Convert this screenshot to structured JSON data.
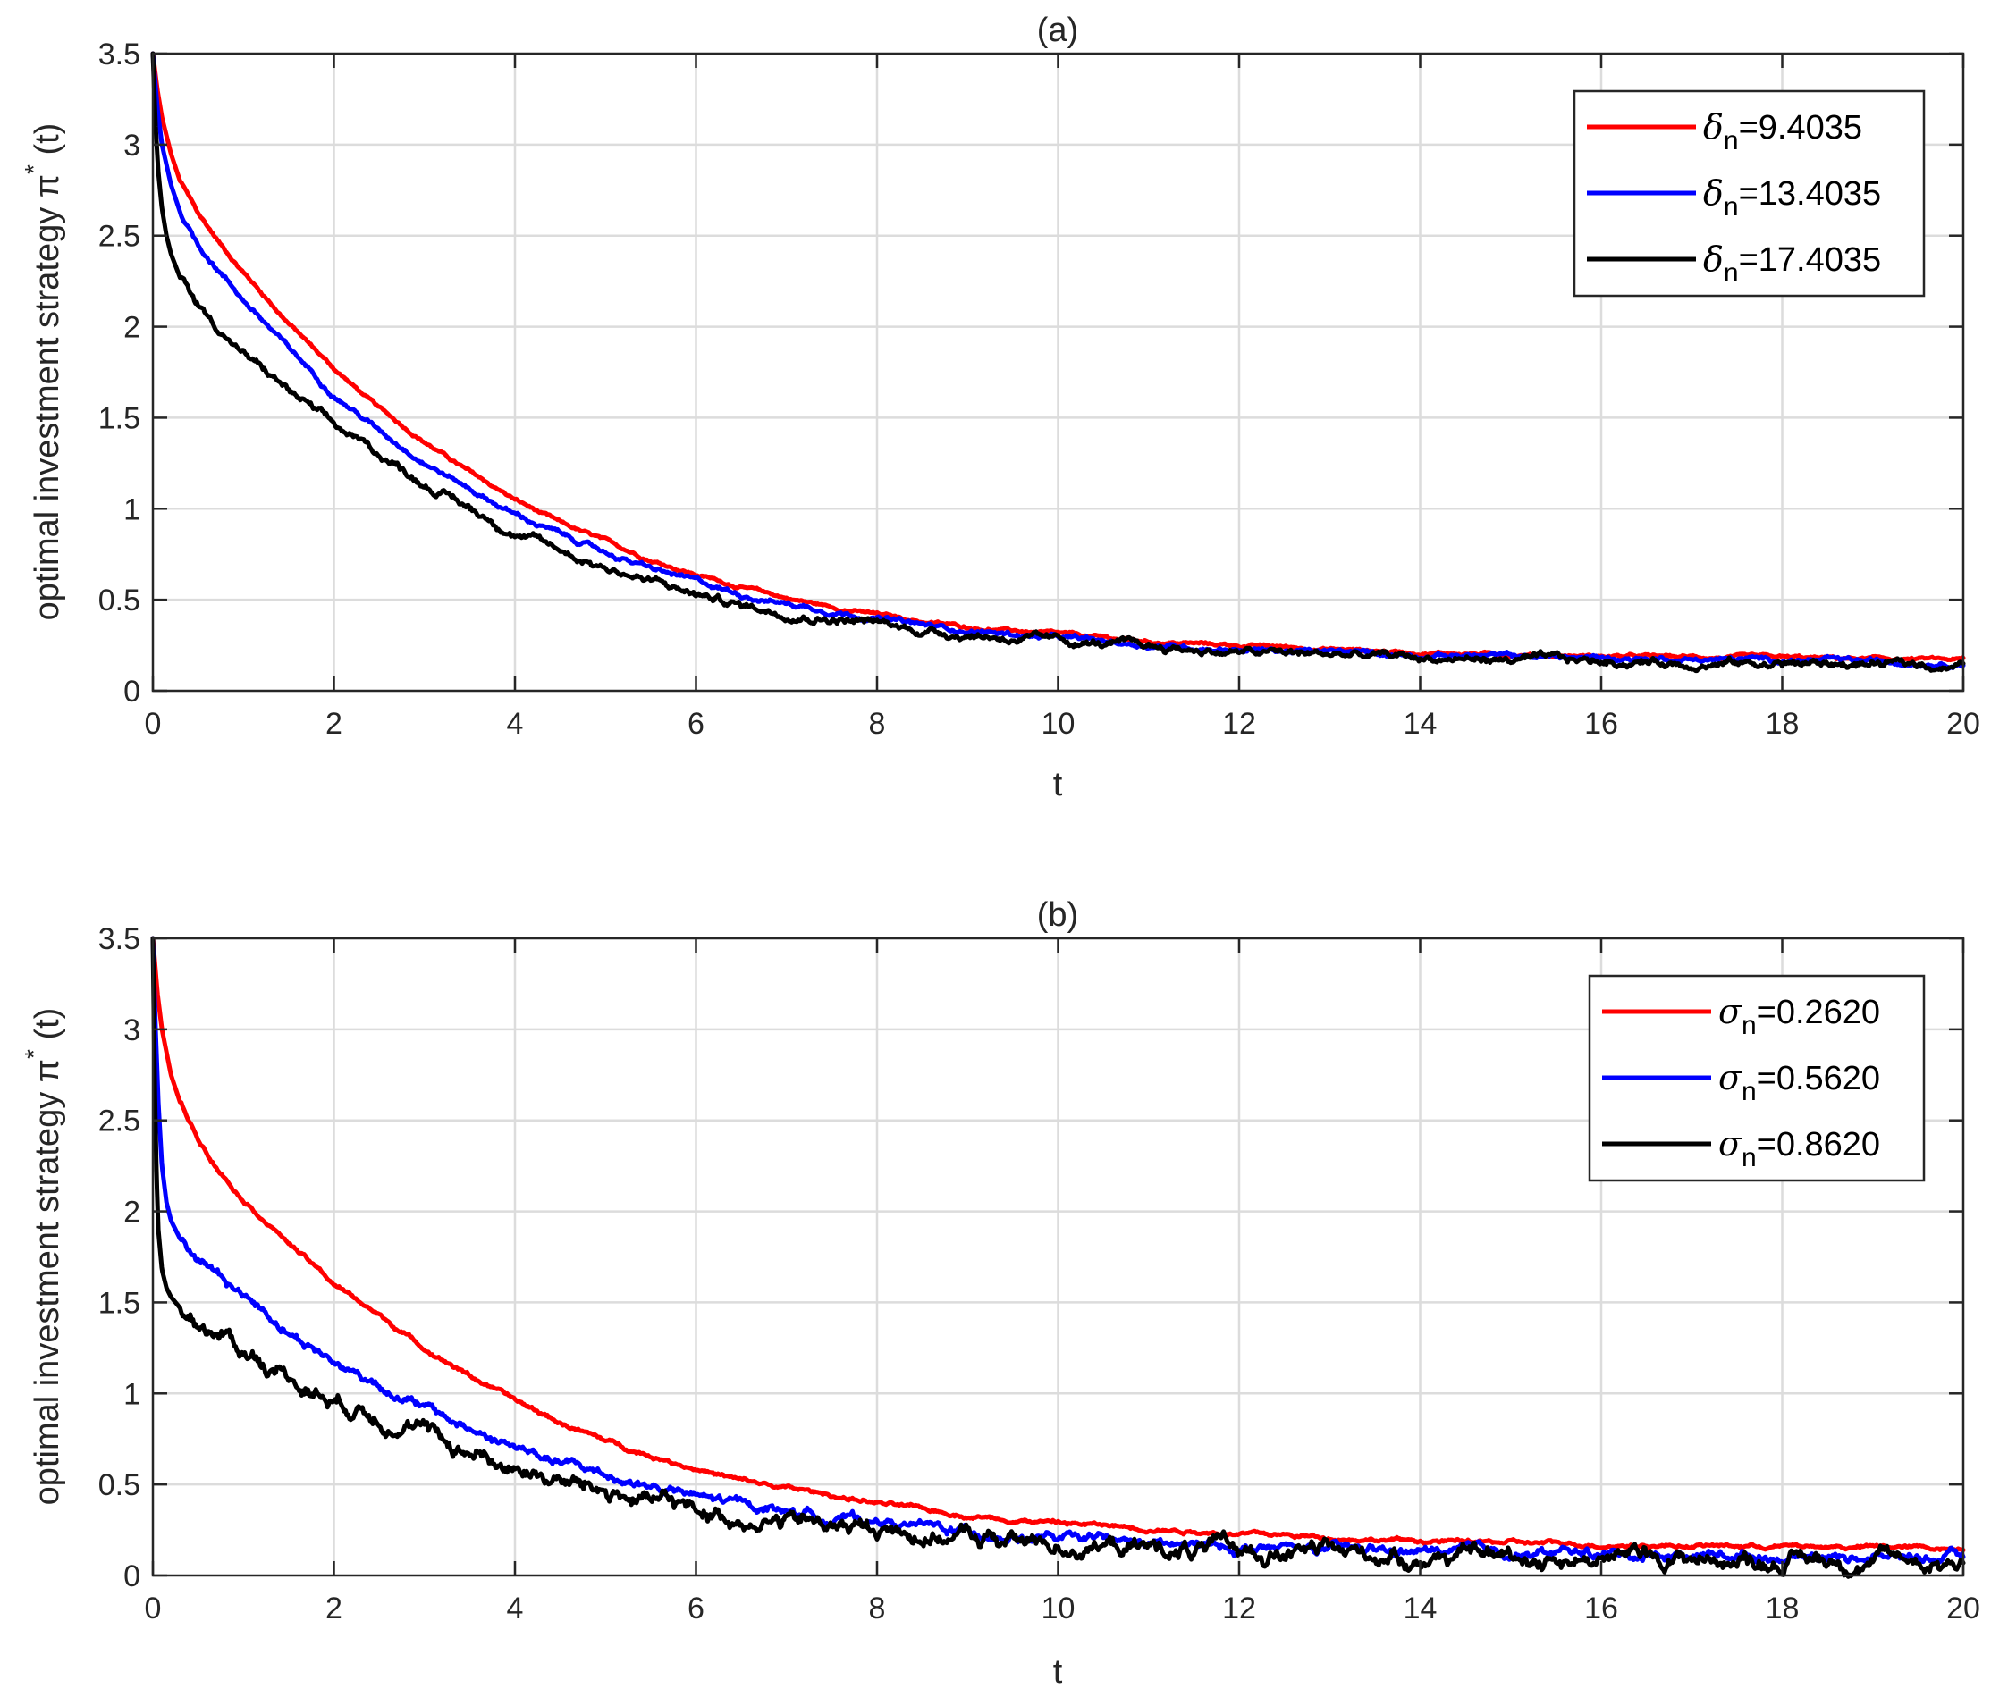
{
  "chart_data": [
    {
      "type": "line",
      "title": "(a)",
      "xlabel": "t",
      "ylabel": "optimal investment strategy π",
      "ylabel_superscript": "*",
      "ylabel_suffix": " (t)",
      "xlim": [
        0,
        20
      ],
      "ylim": [
        0,
        3.5
      ],
      "xticks": [
        "0",
        "2",
        "4",
        "6",
        "8",
        "10",
        "12",
        "14",
        "16",
        "18",
        "20"
      ],
      "yticks": [
        "0",
        "0.5",
        "1",
        "1.5",
        "2",
        "2.5",
        "3",
        "3.5"
      ],
      "grid": true,
      "legend_position": "top-right",
      "series": [
        {
          "symbol": "δ",
          "subscript": "n",
          "value_text": "=9.4035",
          "color": "#ff0000",
          "noise": 0.004,
          "x": [
            0,
            0.05,
            0.1,
            0.2,
            0.3,
            0.5,
            0.75,
            1,
            1.5,
            2,
            2.5,
            3,
            3.5,
            4,
            4.5,
            5,
            5.5,
            6,
            6.5,
            7,
            7.5,
            8,
            8.5,
            9,
            9.5,
            10,
            11,
            12,
            13,
            14,
            15,
            16,
            17,
            18,
            19,
            20
          ],
          "y": [
            3.5,
            3.3,
            3.15,
            2.95,
            2.8,
            2.62,
            2.45,
            2.3,
            2.02,
            1.77,
            1.55,
            1.37,
            1.2,
            1.05,
            0.92,
            0.82,
            0.72,
            0.64,
            0.57,
            0.51,
            0.46,
            0.42,
            0.38,
            0.35,
            0.33,
            0.31,
            0.27,
            0.25,
            0.23,
            0.21,
            0.2,
            0.19,
            0.185,
            0.18,
            0.175,
            0.17
          ]
        },
        {
          "symbol": "δ",
          "subscript": "n",
          "value_text": "=13.4035",
          "color": "#0000ff",
          "noise": 0.006,
          "x": [
            0,
            0.05,
            0.1,
            0.2,
            0.3,
            0.5,
            0.75,
            1,
            1.5,
            2,
            2.5,
            3,
            3.5,
            4,
            4.5,
            5,
            5.5,
            6,
            6.5,
            7,
            7.5,
            8,
            8.5,
            9,
            9.5,
            10,
            11,
            12,
            13,
            14,
            15,
            16,
            17,
            18,
            19,
            20
          ],
          "y": [
            3.5,
            3.2,
            3.0,
            2.78,
            2.63,
            2.45,
            2.3,
            2.15,
            1.88,
            1.63,
            1.43,
            1.26,
            1.11,
            0.97,
            0.86,
            0.76,
            0.67,
            0.6,
            0.53,
            0.48,
            0.44,
            0.4,
            0.36,
            0.33,
            0.31,
            0.29,
            0.25,
            0.23,
            0.21,
            0.2,
            0.19,
            0.18,
            0.175,
            0.17,
            0.16,
            0.155
          ]
        },
        {
          "symbol": "δ",
          "subscript": "n",
          "value_text": "=17.4035",
          "color": "#000000",
          "noise": 0.01,
          "x": [
            0,
            0.03,
            0.06,
            0.1,
            0.15,
            0.2,
            0.3,
            0.5,
            0.75,
            1,
            1.5,
            2,
            2.5,
            3,
            3.5,
            4,
            4.5,
            5,
            5.5,
            6,
            6.5,
            7,
            7.5,
            8,
            8.5,
            9,
            9.5,
            10,
            11,
            12,
            13,
            14,
            15,
            16,
            17,
            18,
            19,
            20
          ],
          "y": [
            3.5,
            3.1,
            2.85,
            2.65,
            2.5,
            2.4,
            2.27,
            2.12,
            1.98,
            1.85,
            1.65,
            1.45,
            1.3,
            1.14,
            1.0,
            0.87,
            0.77,
            0.68,
            0.6,
            0.53,
            0.47,
            0.43,
            0.4,
            0.37,
            0.33,
            0.31,
            0.29,
            0.27,
            0.24,
            0.21,
            0.2,
            0.18,
            0.17,
            0.16,
            0.155,
            0.15,
            0.145,
            0.14
          ]
        }
      ]
    },
    {
      "type": "line",
      "title": "(b)",
      "xlabel": "t",
      "ylabel": "optimal investment strategy π",
      "ylabel_superscript": "*",
      "ylabel_suffix": " (t)",
      "xlim": [
        0,
        20
      ],
      "ylim": [
        0,
        3.5
      ],
      "xticks": [
        "0",
        "2",
        "4",
        "6",
        "8",
        "10",
        "12",
        "14",
        "16",
        "18",
        "20"
      ],
      "yticks": [
        "0",
        "0.5",
        "1",
        "1.5",
        "2",
        "2.5",
        "3",
        "3.5"
      ],
      "grid": true,
      "legend_position": "top-right",
      "series": [
        {
          "symbol": "σ",
          "subscript": "n",
          "value_text": "=0.2620",
          "color": "#ff0000",
          "noise": 0.005,
          "x": [
            0,
            0.05,
            0.1,
            0.2,
            0.3,
            0.5,
            0.75,
            1,
            1.5,
            2,
            2.5,
            3,
            3.5,
            4,
            4.5,
            5,
            5.5,
            6,
            6.5,
            7,
            7.5,
            8,
            8.5,
            9,
            9.5,
            10,
            11,
            12,
            13,
            14,
            15,
            16,
            17,
            18,
            19,
            20
          ],
          "y": [
            3.5,
            3.2,
            3.0,
            2.75,
            2.6,
            2.4,
            2.22,
            2.07,
            1.83,
            1.6,
            1.43,
            1.25,
            1.1,
            0.96,
            0.84,
            0.74,
            0.66,
            0.59,
            0.52,
            0.48,
            0.44,
            0.4,
            0.36,
            0.33,
            0.31,
            0.29,
            0.26,
            0.23,
            0.21,
            0.19,
            0.18,
            0.17,
            0.165,
            0.16,
            0.155,
            0.15
          ]
        },
        {
          "symbol": "σ",
          "subscript": "n",
          "value_text": "=0.5620",
          "color": "#0000ff",
          "noise": 0.012,
          "x": [
            0,
            0.03,
            0.06,
            0.1,
            0.15,
            0.2,
            0.3,
            0.5,
            0.75,
            1,
            1.5,
            2,
            2.5,
            3,
            3.5,
            4,
            4.5,
            5,
            5.5,
            6,
            6.5,
            7,
            7.5,
            8,
            8.5,
            9,
            9.5,
            10,
            11,
            12,
            13,
            14,
            15,
            16,
            17,
            18,
            19,
            20
          ],
          "y": [
            3.5,
            3.0,
            2.6,
            2.25,
            2.05,
            1.95,
            1.85,
            1.75,
            1.65,
            1.55,
            1.35,
            1.17,
            1.05,
            0.92,
            0.8,
            0.7,
            0.62,
            0.55,
            0.49,
            0.43,
            0.39,
            0.36,
            0.32,
            0.3,
            0.27,
            0.24,
            0.22,
            0.2,
            0.17,
            0.15,
            0.14,
            0.13,
            0.125,
            0.12,
            0.115,
            0.11,
            0.105,
            0.1
          ]
        },
        {
          "symbol": "σ",
          "subscript": "n",
          "value_text": "=0.8620",
          "color": "#000000",
          "noise": 0.022,
          "x": [
            0,
            0.02,
            0.04,
            0.06,
            0.1,
            0.15,
            0.2,
            0.3,
            0.5,
            0.75,
            1,
            1.5,
            2,
            2.5,
            3,
            3.5,
            4,
            4.5,
            5,
            5.5,
            6,
            6.5,
            7,
            7.5,
            8,
            8.5,
            9,
            9.5,
            10,
            11,
            12,
            13,
            14,
            15,
            16,
            17,
            18,
            19,
            20
          ],
          "y": [
            3.5,
            2.7,
            2.2,
            1.9,
            1.68,
            1.58,
            1.53,
            1.47,
            1.4,
            1.32,
            1.24,
            1.1,
            0.97,
            0.9,
            0.78,
            0.68,
            0.6,
            0.52,
            0.46,
            0.4,
            0.36,
            0.32,
            0.3,
            0.27,
            0.25,
            0.23,
            0.21,
            0.19,
            0.17,
            0.15,
            0.13,
            0.12,
            0.11,
            0.1,
            0.1,
            0.095,
            0.09,
            0.085,
            0.08
          ]
        }
      ]
    }
  ]
}
